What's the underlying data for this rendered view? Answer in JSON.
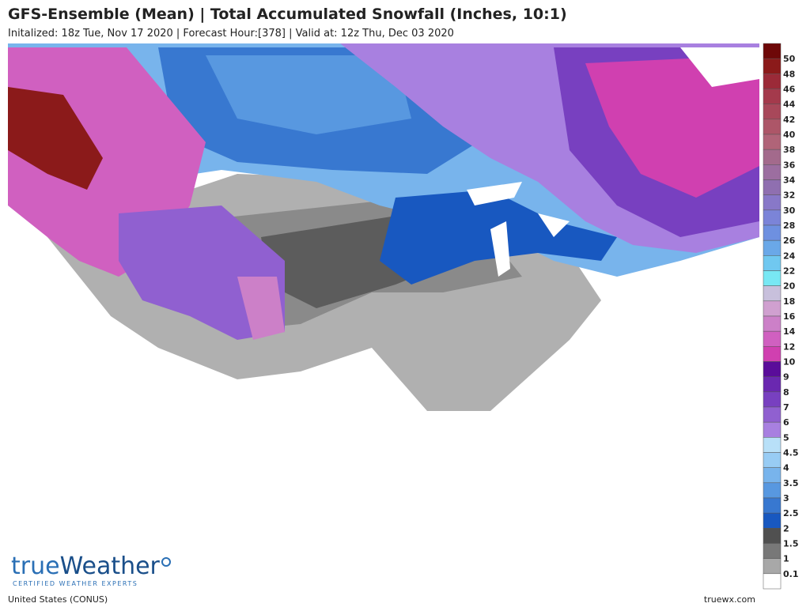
{
  "header": {
    "title": "GFS-Ensemble (Mean) | Total Accumulated Snowfall (Inches, 10:1)",
    "subtitle": "Initalized: 18z Tue, Nov 17 2020 | Forecast Hour:[378] | Valid at: 12z Thu, Dec 03 2020"
  },
  "legend": {
    "labels": [
      50,
      48,
      46,
      44,
      42,
      40,
      38,
      36,
      34,
      32,
      30,
      28,
      26,
      24,
      22,
      20,
      18,
      16,
      14,
      12,
      10,
      9,
      8,
      7,
      6,
      5,
      4.5,
      4,
      3.5,
      3,
      2.5,
      2,
      1.5,
      1,
      0.1
    ],
    "colors": [
      "#6e0808",
      "#8b1a1a",
      "#9b2a38",
      "#a43a4c",
      "#a8485a",
      "#ad5668",
      "#b06478",
      "#a36a8c",
      "#9c6ea0",
      "#8f6fb0",
      "#8878c8",
      "#7b84d8",
      "#6e90e0",
      "#6aa8e8",
      "#70c8f0",
      "#78e8f4",
      "#c8c0dc",
      "#d0a0d0",
      "#cc80c8",
      "#d060c0",
      "#d040b0",
      "#5a0c9a",
      "#6a28b0",
      "#7840c0",
      "#9060d0",
      "#a880e0",
      "#b8e0f8",
      "#98ccf4",
      "#78b4ec",
      "#5898e0",
      "#3878d0",
      "#1858c0",
      "#505050",
      "#787878",
      "#a8a8a8",
      "#ffffff"
    ]
  },
  "logo": {
    "brand_a": "true",
    "brand_b": "Weather",
    "tagline": "CERTIFIED WEATHER EXPERTS"
  },
  "footer": {
    "region": "United States (CONUS)",
    "site": "truewx.com"
  }
}
